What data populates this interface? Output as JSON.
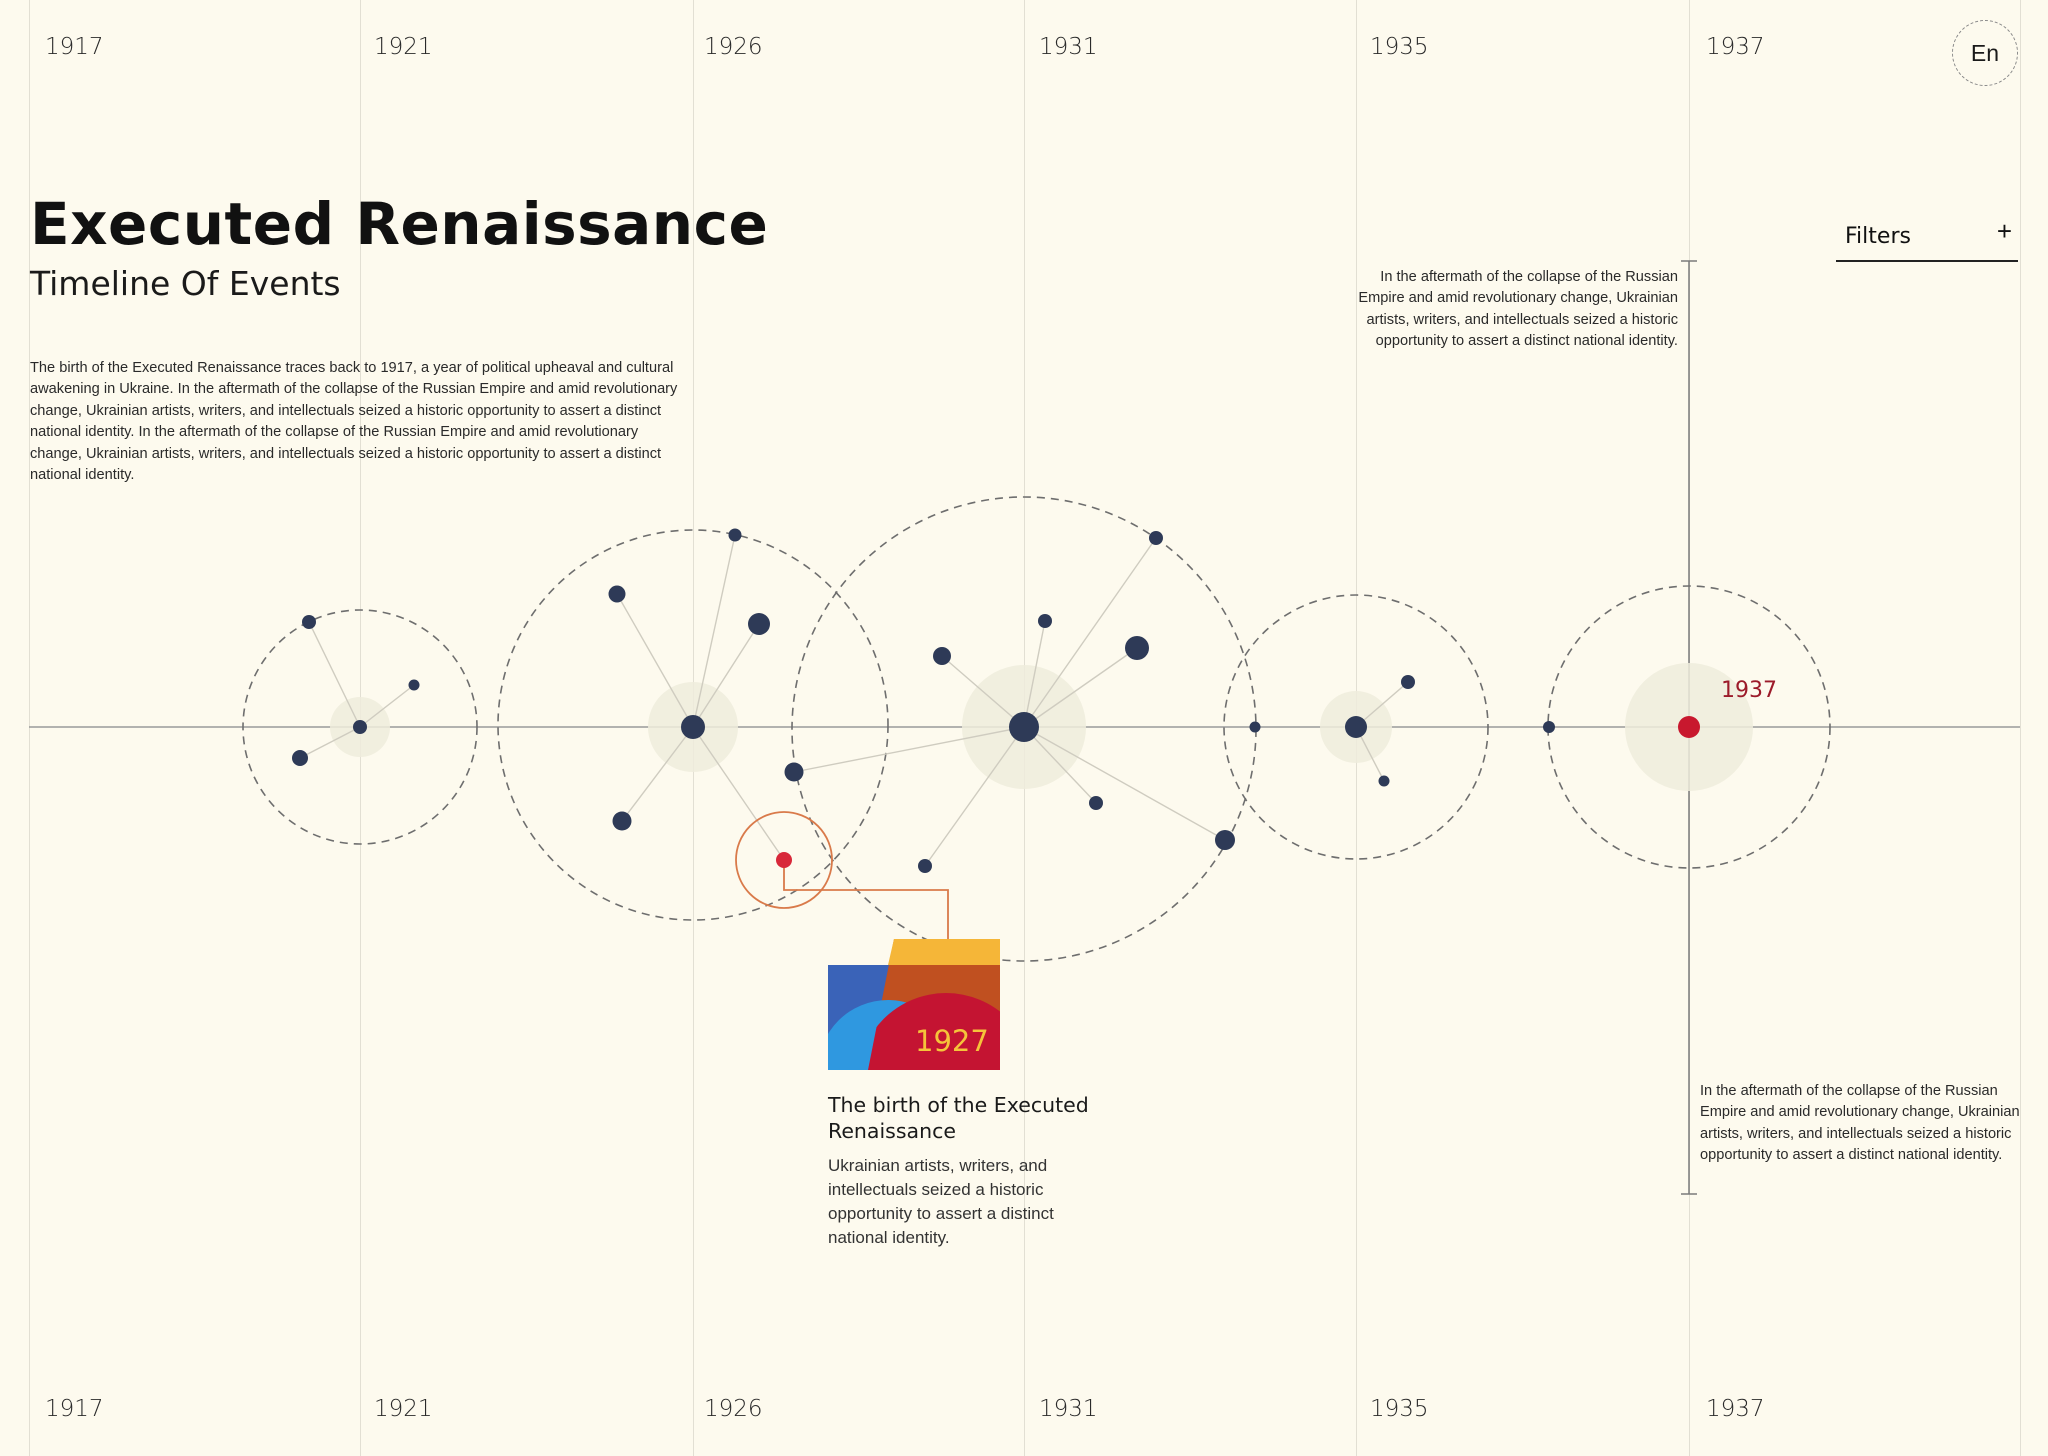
{
  "years_top": [
    "1917",
    "1921",
    "1926",
    "1931",
    "1935",
    "1937"
  ],
  "years_bottom": [
    "1917",
    "1921",
    "1926",
    "1931",
    "1935",
    "1937"
  ],
  "language": "En",
  "header": {
    "title": "Executed Renaissance",
    "subtitle": "Timeline Of Events"
  },
  "intro_text": "The birth of the Executed Renaissance traces back to 1917, a year of political upheaval and cultural awakening in Ukraine. In the aftermath of the collapse of the Russian Empire and amid revolutionary change, Ukrainian artists, writers, and intellectuals seized a historic opportunity to assert a distinct national identity. In the aftermath of the collapse of the Russian Empire and amid revolutionary change, Ukrainian artists, writers, and intellectuals seized a historic opportunity to assert a distinct national identity.",
  "filters": {
    "label": "Filters",
    "icon": "plus-icon"
  },
  "side_text_top": "In the aftermath of the collapse of the Russian Empire and amid revolutionary change, Ukrainian artists, writers, and intellectuals seized a historic opportunity to assert a distinct national identity.",
  "side_text_bottom": "In the aftermath of the collapse of the Russian Empire and amid revolutionary change, Ukrainian artists, writers, and intellectuals seized a historic opportunity to assert a distinct national identity.",
  "active_year_label": "1937",
  "event": {
    "thumb_year": "1927",
    "title": "The birth of the Executed Renaissance",
    "description": "Ukrainian artists, writers, and intellectuals seized a historic opportunity to assert a distinct national identity."
  },
  "colors": {
    "background": "#fdfaee",
    "node": "#2e3a57",
    "accent_red": "#d8283a",
    "dark_red": "#9c1b2a",
    "highlight_orange": "#d97a4a",
    "thumb_yellow": "#f5b638",
    "thumb_blue": "#3a63b8",
    "thumb_light_blue": "#2f98e0",
    "thumb_crimson": "#c41432",
    "thumb_rust": "#c05020"
  }
}
